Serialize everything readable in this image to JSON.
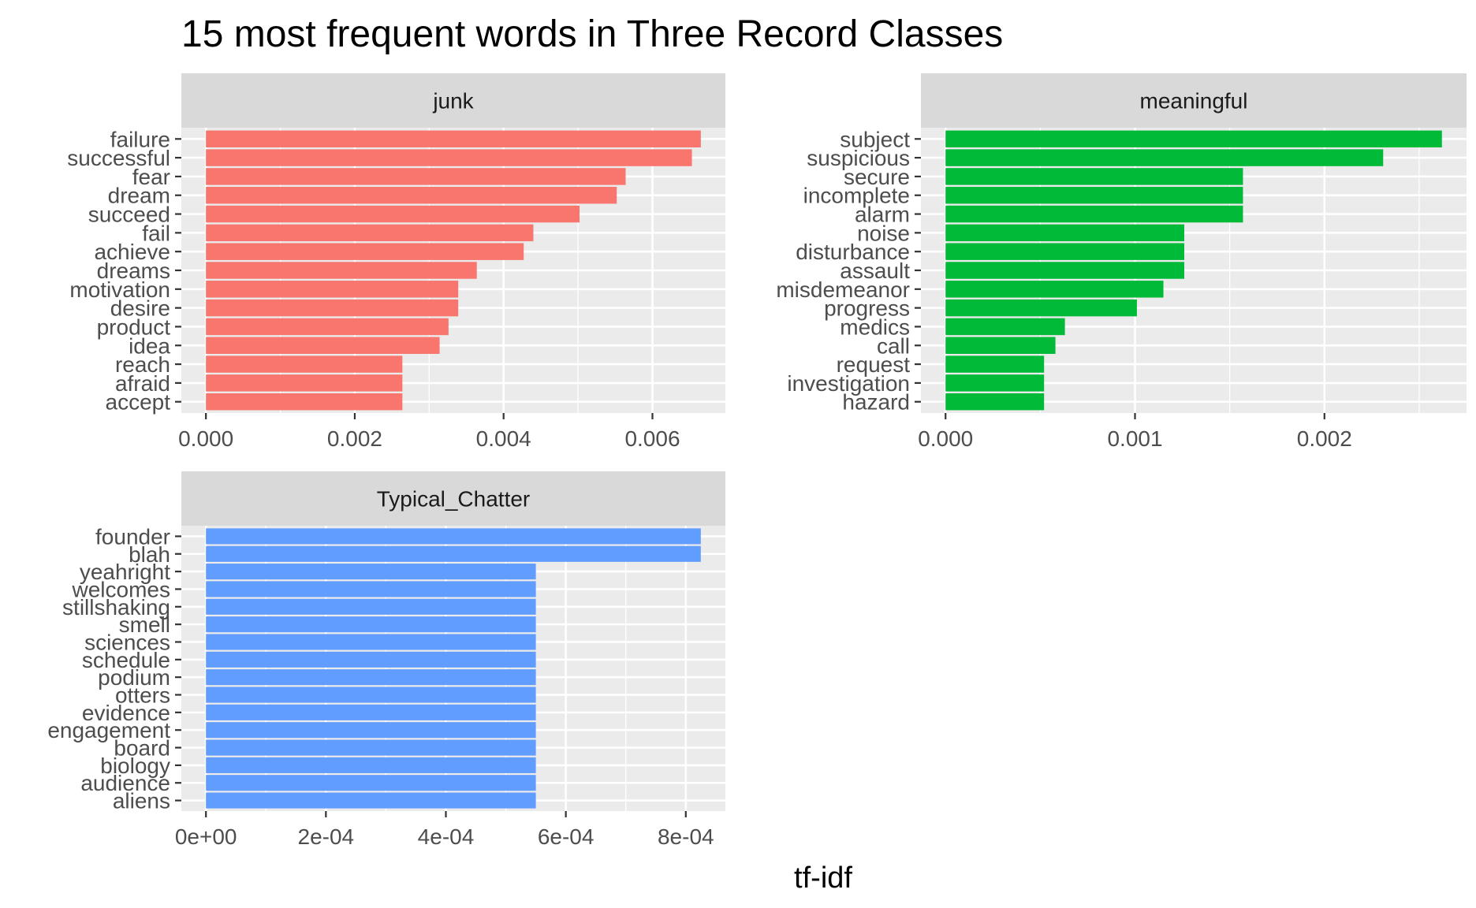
{
  "title": "15 most frequent words in Three Record Classes",
  "xlabel": "tf-idf",
  "chart_data": [
    {
      "type": "bar",
      "orientation": "horizontal",
      "facet": "junk",
      "color": "#F8766D",
      "categories": [
        "failure",
        "successful",
        "fear",
        "dream",
        "succeed",
        "fail",
        "achieve",
        "dreams",
        "motivation",
        "desire",
        "product",
        "idea",
        "reach",
        "afraid",
        "accept"
      ],
      "values": [
        0.00665,
        0.00653,
        0.00564,
        0.00552,
        0.00502,
        0.0044,
        0.00427,
        0.00364,
        0.00339,
        0.00339,
        0.00326,
        0.00314,
        0.00264,
        0.00264,
        0.00264
      ],
      "xlim": [
        -0.00033,
        0.00698
      ],
      "xticks": [
        0,
        0.002,
        0.004,
        0.006
      ],
      "xtick_labels": [
        "0.000",
        "0.002",
        "0.004",
        "0.006"
      ],
      "grid": true
    },
    {
      "type": "bar",
      "orientation": "horizontal",
      "facet": "meaningful",
      "color": "#00BA38",
      "categories": [
        "subject",
        "suspicious",
        "secure",
        "incomplete",
        "alarm",
        "noise",
        "disturbance",
        "assault",
        "misdemeanor",
        "progress",
        "medics",
        "call",
        "request",
        "investigation",
        "hazard"
      ],
      "values": [
        0.00262,
        0.00231,
        0.00157,
        0.00157,
        0.00157,
        0.00126,
        0.00126,
        0.00126,
        0.00115,
        0.00101,
        0.00063,
        0.00058,
        0.00052,
        0.00052,
        0.00052
      ],
      "xlim": [
        -0.00013,
        0.00275
      ],
      "xticks": [
        0,
        0.001,
        0.002
      ],
      "xtick_labels": [
        "0.000",
        "0.001",
        "0.002"
      ],
      "grid": true
    },
    {
      "type": "bar",
      "orientation": "horizontal",
      "facet": "Typical_Chatter",
      "color": "#619CFF",
      "categories": [
        "founder",
        "blah",
        "yeahright",
        "welcomes",
        "stillshaking",
        "smell",
        "sciences",
        "schedule",
        "podium",
        "otters",
        "evidence",
        "engagement",
        "board",
        "biology",
        "audience",
        "aliens"
      ],
      "values": [
        0.000825,
        0.000825,
        0.00055,
        0.00055,
        0.00055,
        0.00055,
        0.00055,
        0.00055,
        0.00055,
        0.00055,
        0.00055,
        0.00055,
        0.00055,
        0.00055,
        0.00055,
        0.00055
      ],
      "xlim": [
        -4.1e-05,
        0.000866
      ],
      "xticks": [
        0,
        0.0002,
        0.0004,
        0.0006,
        0.0008
      ],
      "xtick_labels": [
        "0e+00",
        "2e-04",
        "4e-04",
        "6e-04",
        "8e-04"
      ],
      "grid": true
    }
  ]
}
